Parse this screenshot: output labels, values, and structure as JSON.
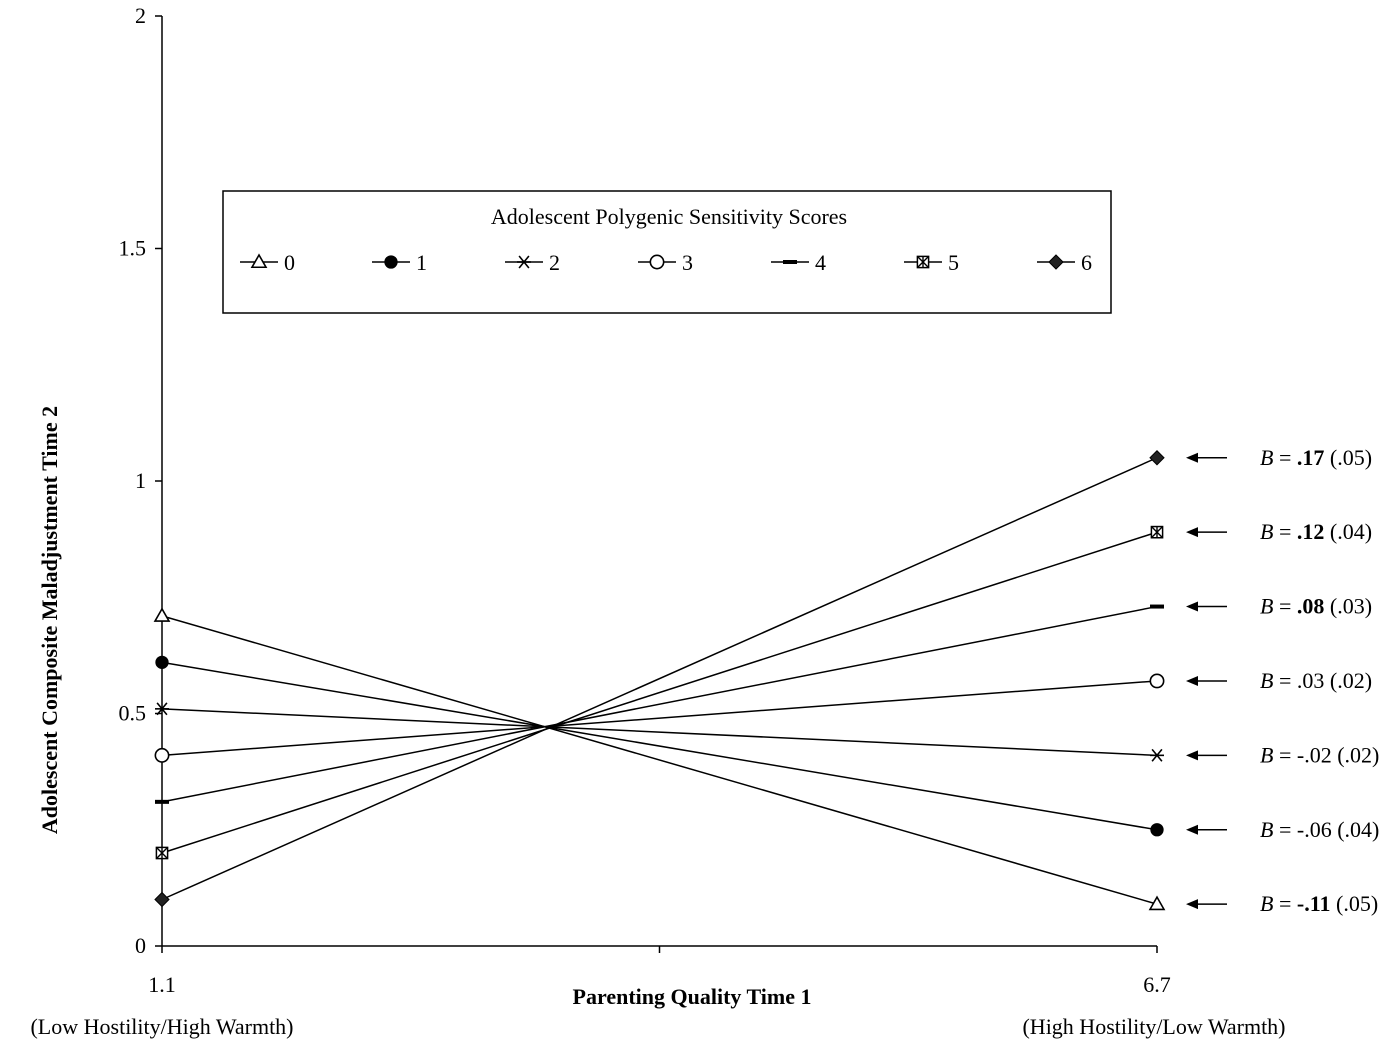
{
  "chart_data": {
    "type": "line",
    "xlabel": "Parenting Quality Time 1",
    "ylabel": "Adolescent Composite Maladjustment Time 2",
    "x": [
      1.1,
      6.7
    ],
    "x_tick_labels": [
      "1.1",
      "6.7"
    ],
    "x_anchor_labels": [
      "(Low Hostility/High Warmth)",
      "(High Hostility/Low Warmth)"
    ],
    "ylim": [
      0,
      2
    ],
    "y_ticks": [
      "0",
      "0.5",
      "1",
      "1.5",
      "2"
    ],
    "legend": {
      "title": "Adolescent Polygenic Sensitivity Scores",
      "placement": "top"
    },
    "series": [
      {
        "name": "0",
        "marker": "open-triangle",
        "values": [
          0.71,
          0.09
        ],
        "annotation": {
          "prefix": "B =",
          "coef": "-.11",
          "coef_bold": true,
          "se": "(.05)"
        }
      },
      {
        "name": "1",
        "marker": "filled-circle",
        "values": [
          0.61,
          0.25
        ],
        "annotation": {
          "prefix": "B =",
          "coef": "-.06",
          "coef_bold": false,
          "se": "(.04)"
        }
      },
      {
        "name": "2",
        "marker": "asterisk",
        "values": [
          0.51,
          0.41
        ],
        "annotation": {
          "prefix": "B =",
          "coef": "-.02",
          "coef_bold": false,
          "se": "(.02)"
        }
      },
      {
        "name": "3",
        "marker": "open-circle",
        "values": [
          0.41,
          0.57
        ],
        "annotation": {
          "prefix": "B =",
          "coef": ".03",
          "coef_bold": false,
          "se": "(.02)"
        }
      },
      {
        "name": "4",
        "marker": "dash",
        "values": [
          0.31,
          0.73
        ],
        "annotation": {
          "prefix": "B =",
          "coef": ".08",
          "coef_bold": true,
          "se": "(.03)"
        }
      },
      {
        "name": "5",
        "marker": "starred-square",
        "values": [
          0.2,
          0.89
        ],
        "annotation": {
          "prefix": "B =",
          "coef": ".12",
          "coef_bold": true,
          "se": "(.04)"
        }
      },
      {
        "name": "6",
        "marker": "filled-diamond",
        "values": [
          0.1,
          1.05
        ],
        "annotation": {
          "prefix": "B =",
          "coef": ".17",
          "coef_bold": true,
          "se": "(.05)"
        }
      }
    ],
    "grid": false
  }
}
